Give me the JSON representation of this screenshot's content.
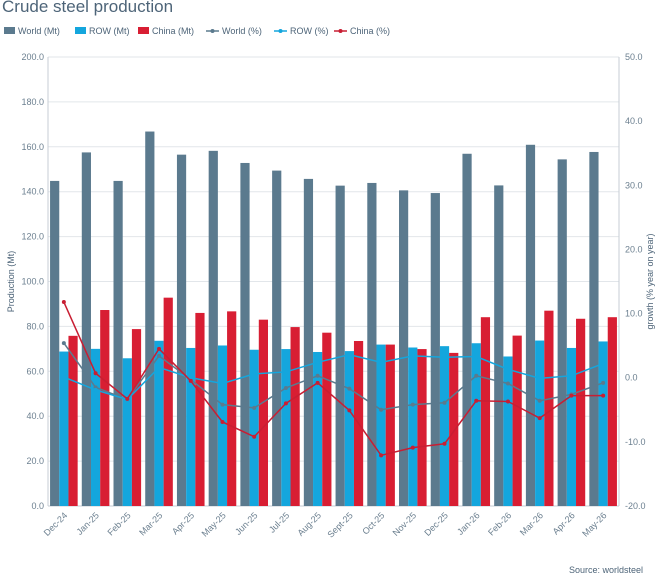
{
  "title": "Crude steel production",
  "source": "Source: worldsteel",
  "colors": {
    "world_bar": "#5b7a8e",
    "row_bar": "#14a6dd",
    "china_bar": "#d81e33",
    "world_line": "#5b7a8e",
    "row_line": "#14a6dd",
    "china_line": "#c81e33",
    "grid": "#e2e6ea"
  },
  "chart_data": {
    "type": "bar",
    "title": "Crude steel production",
    "ylabel": "Production (Mt)",
    "y2label": "growth (% year on year)",
    "ylim": [
      0,
      200
    ],
    "y2lim": [
      -20,
      50
    ],
    "yticks": [
      "0.0",
      "20.0",
      "40.0",
      "60.0",
      "80.0",
      "100.0",
      "120.0",
      "140.0",
      "160.0",
      "180.0",
      "200.0"
    ],
    "y2ticks": [
      "-20.0",
      "-10.0",
      "0.0",
      "10.0",
      "20.0",
      "30.0",
      "40.0",
      "50.0"
    ],
    "grid": true,
    "legend_position": "top-left",
    "categories": [
      "Dec-24",
      "Jan-25",
      "Feb-25",
      "Mar-25",
      "Apr-25",
      "May-25",
      "Jun-25",
      "Jul-25",
      "Aug-25",
      "Sept-25",
      "Oct-25",
      "Nov-25",
      "Dec-25",
      "Jan-26",
      "Feb-26",
      "Mar-26",
      "Apr-26",
      "May-26"
    ],
    "series": [
      {
        "name": "World (Mt)",
        "kind": "bar",
        "values": [
          144.8,
          157.5,
          144.8,
          166.8,
          156.5,
          158.2,
          152.8,
          149.4,
          145.7,
          142.7,
          143.9,
          140.6,
          139.4,
          156.9,
          142.8,
          160.9,
          154.4,
          157.7
        ]
      },
      {
        "name": "ROW (Mt)",
        "kind": "bar",
        "values": [
          68.8,
          70.0,
          65.8,
          73.6,
          70.4,
          71.5,
          69.6,
          69.9,
          68.6,
          69.0,
          71.9,
          70.6,
          71.2,
          72.5,
          66.6,
          73.7,
          70.4,
          73.3
        ]
      },
      {
        "name": "China (Mt)",
        "kind": "bar",
        "values": [
          75.8,
          87.3,
          78.8,
          92.8,
          86.0,
          86.7,
          83.0,
          79.7,
          77.2,
          73.5,
          71.9,
          69.9,
          68.2,
          84.1,
          75.9,
          87.0,
          83.4,
          84.1
        ]
      },
      {
        "name": "World (%)",
        "kind": "line",
        "axis": "right",
        "values": [
          5.4,
          -1.5,
          -3.4,
          3.4,
          -0.3,
          -4.2,
          -4.7,
          -1.6,
          0.3,
          -1.7,
          -5.0,
          -4.2,
          -3.9,
          0.3,
          -0.9,
          -3.6,
          -2.6,
          -0.8
        ]
      },
      {
        "name": "ROW (%)",
        "kind": "line",
        "axis": "right",
        "values": [
          0.1,
          -1.9,
          -3.4,
          1.6,
          0.0,
          -0.9,
          0.6,
          0.9,
          2.4,
          3.6,
          2.4,
          3.4,
          3.2,
          3.3,
          1.3,
          -0.1,
          0.3,
          2.2
        ]
      },
      {
        "name": "China (%)",
        "kind": "line",
        "axis": "right",
        "values": [
          11.8,
          0.7,
          -3.3,
          4.5,
          -0.5,
          -6.9,
          -9.2,
          -4.0,
          -0.8,
          -5.1,
          -12.1,
          -10.9,
          -10.3,
          -3.6,
          -3.7,
          -6.3,
          -2.8,
          -2.8
        ]
      }
    ]
  }
}
